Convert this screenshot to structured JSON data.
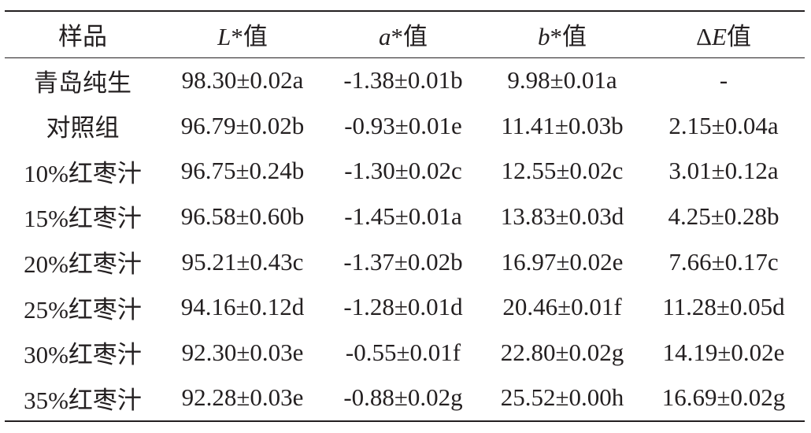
{
  "table": {
    "header": [
      "样品",
      "L*值",
      "a*值",
      "b*值",
      "ΔE值"
    ],
    "rows": [
      [
        "青岛纯生",
        "98.30±0.02a",
        "-1.38±0.01b",
        "9.98±0.01a",
        "-"
      ],
      [
        "对照组",
        "96.79±0.02b",
        "-0.93±0.01e",
        "11.41±0.03b",
        "2.15±0.04a"
      ],
      [
        "10%红枣汁",
        "96.75±0.24b",
        "-1.30±0.02c",
        "12.55±0.02c",
        "3.01±0.12a"
      ],
      [
        "15%红枣汁",
        "96.58±0.60b",
        "-1.45±0.01a",
        "13.83±0.03d",
        "4.25±0.28b"
      ],
      [
        "20%红枣汁",
        "95.21±0.43c",
        "-1.37±0.02b",
        "16.97±0.02e",
        "7.66±0.17c"
      ],
      [
        "25%红枣汁",
        "94.16±0.12d",
        "-1.28±0.01d",
        "20.46±0.01f",
        "11.28±0.05d"
      ],
      [
        "30%红枣汁",
        "92.30±0.03e",
        "-0.55±0.01f",
        "22.80±0.02g",
        "14.19±0.02e"
      ],
      [
        "35%红枣汁",
        "92.28±0.03e",
        "-0.88±0.02g",
        "25.52±0.00h",
        "16.69±0.02g"
      ]
    ]
  }
}
